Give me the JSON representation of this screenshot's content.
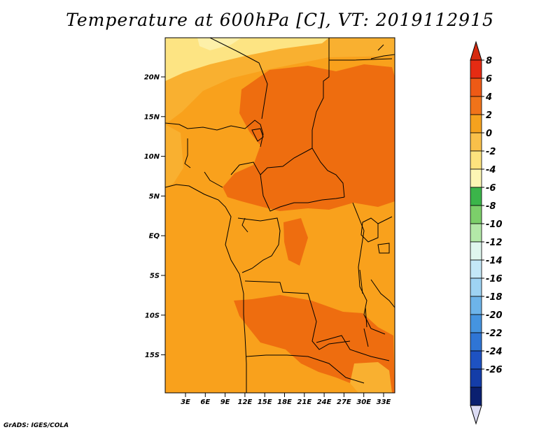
{
  "title": "Temperature at 600hPa [C], VT: 2019112915",
  "credit": "GrADS: IGES/COLA",
  "map": {
    "lat_labels": [
      "20N",
      "15N",
      "10N",
      "5N",
      "EQ",
      "5S",
      "10S",
      "15S"
    ],
    "lon_labels": [
      "3E",
      "6E",
      "9E",
      "12E",
      "15E",
      "18E",
      "21E",
      "24E",
      "27E",
      "30E",
      "33E"
    ],
    "fill_colors": {
      "background_0_2": "#f9a11c",
      "band_2_4": "#f9b030",
      "band_4_6": "#ee6d0f",
      "band_m2_0": "#fde483",
      "band_0_m2_light": "#fdf0a9"
    }
  },
  "colorbar": {
    "labels": [
      "8",
      "6",
      "4",
      "2",
      "0",
      "-2",
      "-4",
      "-6",
      "-8",
      "-10",
      "-12",
      "-14",
      "-16",
      "-18",
      "-20",
      "-22",
      "-24",
      "-26"
    ],
    "colors": [
      "#e52b13",
      "#ee5a16",
      "#f0731a",
      "#f5a21e",
      "#f9c04a",
      "#fde37e",
      "#fcf6b4",
      "#3bb54a",
      "#7ccf6a",
      "#b3e8a8",
      "#dff6ee",
      "#c4e8f8",
      "#9ed3f3",
      "#6db4ea",
      "#4594e0",
      "#2f75d5",
      "#1e52c2",
      "#143da8",
      "#0b2070"
    ],
    "top_triangle_color": "#d62a10",
    "bottom_triangle_color": "#dcdcf4"
  }
}
